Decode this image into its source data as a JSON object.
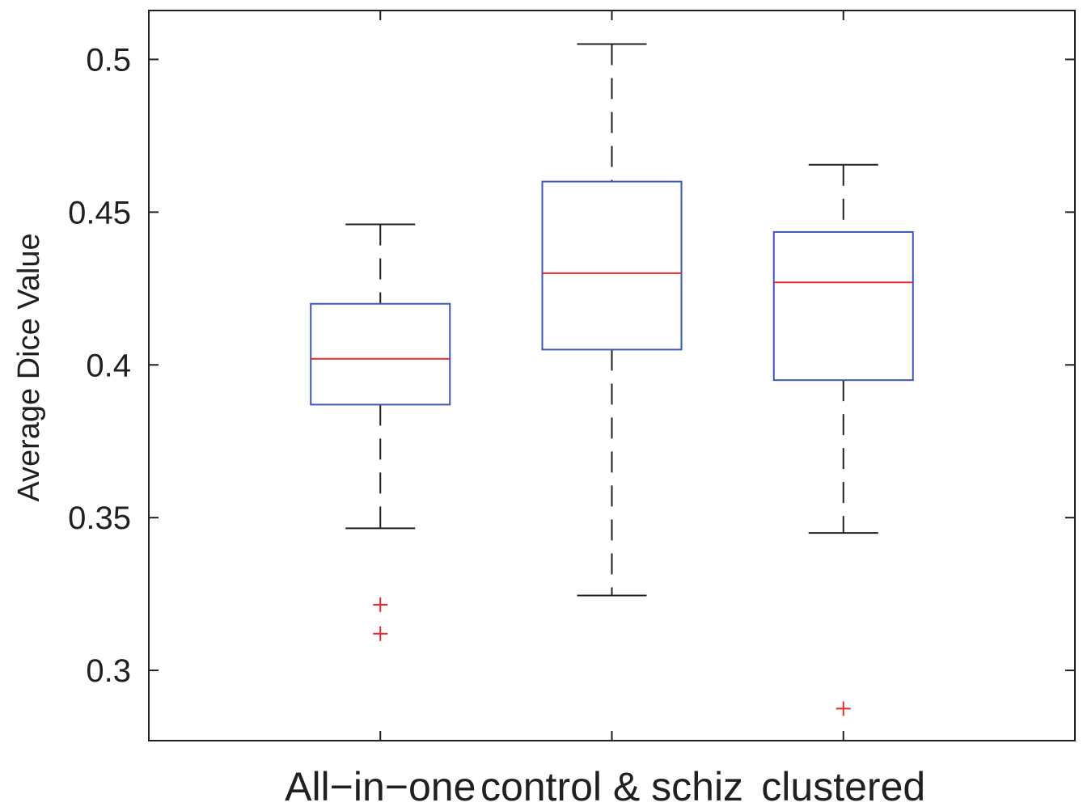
{
  "chart_data": {
    "type": "box",
    "ylabel": "Average Dice Value",
    "xlabel": "",
    "ylim": [
      0.277,
      0.516
    ],
    "yticks": [
      0.3,
      0.35,
      0.4,
      0.45,
      0.5
    ],
    "ytick_labels": [
      "0.3",
      "0.35",
      "0.4",
      "0.45",
      "0.5"
    ],
    "grid": false,
    "colors": {
      "box": "#3b57b8",
      "median": "#e8272f",
      "whisker": "#231f20",
      "outlier": "#e8272f",
      "axes": "#231f20"
    },
    "categories": [
      "All−in−one",
      "control & schiz",
      "clustered"
    ],
    "boxes": [
      {
        "category": "All−in−one",
        "whisker_low": 0.3465,
        "q1": 0.387,
        "median": 0.402,
        "q3": 0.42,
        "whisker_high": 0.446,
        "outliers": [
          0.3215,
          0.312
        ]
      },
      {
        "category": "control & schiz",
        "whisker_low": 0.3245,
        "q1": 0.405,
        "median": 0.43,
        "q3": 0.46,
        "whisker_high": 0.505,
        "outliers": []
      },
      {
        "category": "clustered",
        "whisker_low": 0.345,
        "q1": 0.395,
        "median": 0.427,
        "q3": 0.4435,
        "whisker_high": 0.4655,
        "outliers": [
          0.2875
        ]
      }
    ]
  }
}
